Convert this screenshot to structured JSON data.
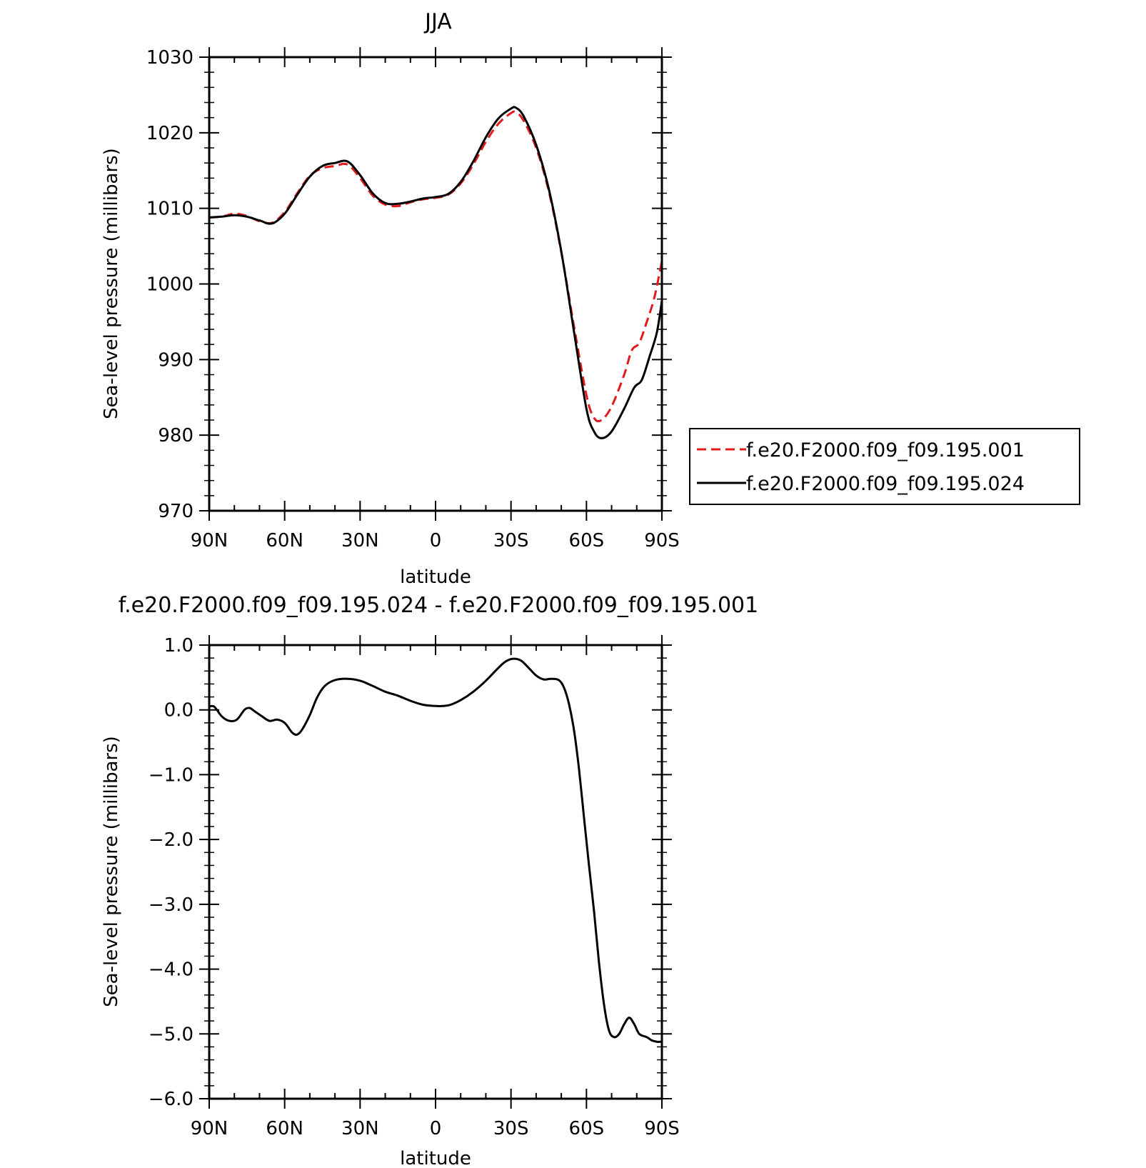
{
  "chart_data": [
    {
      "type": "line",
      "title": "JJA",
      "xlabel": "latitude",
      "ylabel": "Sea-level pressure (millibars)",
      "x_ticks": [
        {
          "label": "90N",
          "lat": 90
        },
        {
          "label": "60N",
          "lat": 60
        },
        {
          "label": "30N",
          "lat": 30
        },
        {
          "label": "0",
          "lat": 0
        },
        {
          "label": "30S",
          "lat": -30
        },
        {
          "label": "60S",
          "lat": -60
        },
        {
          "label": "90S",
          "lat": -90
        }
      ],
      "y_ticks": [
        {
          "label": "970",
          "value": 970
        },
        {
          "label": "980",
          "value": 980
        },
        {
          "label": "990",
          "value": 990
        },
        {
          "label": "1000",
          "value": 1000
        },
        {
          "label": "1010",
          "value": 1010
        },
        {
          "label": "1020",
          "value": 1020
        },
        {
          "label": "1030",
          "value": 1030
        }
      ],
      "xlim": [
        90,
        -90
      ],
      "ylim": [
        970,
        1030
      ],
      "grid": false,
      "legend_position": "right",
      "series": [
        {
          "name": "f.e20.F2000.f09_f09.195.001",
          "color": "#e31a1c",
          "dash": "dashed",
          "points": [
            [
              90,
              1008.8
            ],
            [
              85,
              1008.9
            ],
            [
              80,
              1009.3
            ],
            [
              75,
              1009.0
            ],
            [
              70,
              1008.3
            ],
            [
              65,
              1008.1
            ],
            [
              60,
              1009.5
            ],
            [
              55,
              1012.0
            ],
            [
              50,
              1014.3
            ],
            [
              45,
              1015.3
            ],
            [
              40,
              1015.6
            ],
            [
              35,
              1015.8
            ],
            [
              30,
              1014.0
            ],
            [
              25,
              1011.7
            ],
            [
              20,
              1010.5
            ],
            [
              15,
              1010.3
            ],
            [
              10,
              1010.8
            ],
            [
              5,
              1011.2
            ],
            [
              0,
              1011.4
            ],
            [
              -5,
              1011.8
            ],
            [
              -10,
              1013.3
            ],
            [
              -15,
              1015.8
            ],
            [
              -20,
              1018.8
            ],
            [
              -25,
              1021.2
            ],
            [
              -30,
              1022.6
            ],
            [
              -32,
              1022.7
            ],
            [
              -35,
              1021.6
            ],
            [
              -40,
              1018.0
            ],
            [
              -45,
              1012.3
            ],
            [
              -50,
              1004.2
            ],
            [
              -55,
              994.5
            ],
            [
              -60,
              985.3
            ],
            [
              -63,
              982.3
            ],
            [
              -66,
              982.0
            ],
            [
              -70,
              983.8
            ],
            [
              -75,
              988.0
            ],
            [
              -78,
              991.2
            ],
            [
              -81,
              992.2
            ],
            [
              -84,
              995.0
            ],
            [
              -87,
              998.2
            ],
            [
              -90,
              1003.0
            ]
          ]
        },
        {
          "name": "f.e20.F2000.f09_f09.195.024",
          "color": "#000000",
          "dash": "solid",
          "points": [
            [
              90,
              1008.8
            ],
            [
              85,
              1008.9
            ],
            [
              80,
              1009.1
            ],
            [
              75,
              1008.9
            ],
            [
              70,
              1008.4
            ],
            [
              65,
              1008.0
            ],
            [
              60,
              1009.3
            ],
            [
              55,
              1011.8
            ],
            [
              50,
              1014.2
            ],
            [
              45,
              1015.6
            ],
            [
              40,
              1016.0
            ],
            [
              35,
              1016.2
            ],
            [
              30,
              1014.4
            ],
            [
              25,
              1012.0
            ],
            [
              20,
              1010.7
            ],
            [
              15,
              1010.6
            ],
            [
              10,
              1010.9
            ],
            [
              5,
              1011.3
            ],
            [
              0,
              1011.5
            ],
            [
              -5,
              1011.9
            ],
            [
              -10,
              1013.5
            ],
            [
              -15,
              1016.2
            ],
            [
              -20,
              1019.4
            ],
            [
              -25,
              1021.9
            ],
            [
              -30,
              1023.2
            ],
            [
              -32,
              1023.3
            ],
            [
              -35,
              1022.2
            ],
            [
              -40,
              1018.4
            ],
            [
              -45,
              1012.6
            ],
            [
              -50,
              1004.3
            ],
            [
              -55,
              993.8
            ],
            [
              -60,
              983.5
            ],
            [
              -63,
              980.5
            ],
            [
              -66,
              979.6
            ],
            [
              -70,
              980.5
            ],
            [
              -75,
              983.5
            ],
            [
              -79,
              986.3
            ],
            [
              -82,
              987.3
            ],
            [
              -85,
              990.3
            ],
            [
              -88,
              993.6
            ],
            [
              -90,
              997.8
            ]
          ]
        }
      ]
    },
    {
      "type": "line",
      "title": "f.e20.F2000.f09_f09.195.024 - f.e20.F2000.f09_f09.195.001",
      "xlabel": "latitude",
      "ylabel": "Sea-level pressure (millibars)",
      "x_ticks": [
        {
          "label": "90N",
          "lat": 90
        },
        {
          "label": "60N",
          "lat": 60
        },
        {
          "label": "30N",
          "lat": 30
        },
        {
          "label": "0",
          "lat": 0
        },
        {
          "label": "30S",
          "lat": -30
        },
        {
          "label": "60S",
          "lat": -60
        },
        {
          "label": "90S",
          "lat": -90
        }
      ],
      "y_ticks": [
        {
          "label": "−6.0",
          "value": -6
        },
        {
          "label": "−5.0",
          "value": -5
        },
        {
          "label": "−4.0",
          "value": -4
        },
        {
          "label": "−3.0",
          "value": -3
        },
        {
          "label": "−2.0",
          "value": -2
        },
        {
          "label": "−1.0",
          "value": -1
        },
        {
          "label": "0.0",
          "value": 0
        },
        {
          "label": "1.0",
          "value": 1
        }
      ],
      "xlim": [
        90,
        -90
      ],
      "ylim": [
        -6,
        1
      ],
      "grid": false,
      "series": [
        {
          "color": "#000000",
          "dash": "solid",
          "points": [
            [
              90,
              0.05
            ],
            [
              88,
              0.05
            ],
            [
              85,
              -0.1
            ],
            [
              82,
              -0.17
            ],
            [
              79,
              -0.15
            ],
            [
              76,
              0.0
            ],
            [
              74,
              0.03
            ],
            [
              72,
              -0.02
            ],
            [
              69,
              -0.1
            ],
            [
              66,
              -0.17
            ],
            [
              63,
              -0.15
            ],
            [
              60,
              -0.2
            ],
            [
              57,
              -0.35
            ],
            [
              55,
              -0.38
            ],
            [
              53,
              -0.3
            ],
            [
              50,
              -0.08
            ],
            [
              47,
              0.2
            ],
            [
              44,
              0.37
            ],
            [
              40,
              0.46
            ],
            [
              35,
              0.48
            ],
            [
              30,
              0.45
            ],
            [
              25,
              0.37
            ],
            [
              20,
              0.28
            ],
            [
              15,
              0.22
            ],
            [
              10,
              0.14
            ],
            [
              5,
              0.08
            ],
            [
              0,
              0.06
            ],
            [
              -3,
              0.06
            ],
            [
              -6,
              0.08
            ],
            [
              -10,
              0.15
            ],
            [
              -15,
              0.28
            ],
            [
              -20,
              0.45
            ],
            [
              -25,
              0.65
            ],
            [
              -28,
              0.75
            ],
            [
              -31,
              0.79
            ],
            [
              -34,
              0.76
            ],
            [
              -37,
              0.65
            ],
            [
              -40,
              0.53
            ],
            [
              -43,
              0.47
            ],
            [
              -46,
              0.48
            ],
            [
              -49,
              0.46
            ],
            [
              -51,
              0.35
            ],
            [
              -53,
              0.1
            ],
            [
              -55,
              -0.3
            ],
            [
              -57,
              -0.9
            ],
            [
              -59,
              -1.65
            ],
            [
              -61,
              -2.4
            ],
            [
              -63,
              -3.1
            ],
            [
              -65,
              -3.9
            ],
            [
              -67,
              -4.55
            ],
            [
              -69,
              -4.95
            ],
            [
              -71,
              -5.05
            ],
            [
              -73,
              -5.0
            ],
            [
              -75,
              -4.85
            ],
            [
              -77,
              -4.75
            ],
            [
              -79,
              -4.85
            ],
            [
              -81,
              -5.0
            ],
            [
              -84,
              -5.05
            ],
            [
              -86,
              -5.1
            ],
            [
              -88,
              -5.12
            ],
            [
              -90,
              -5.12
            ]
          ]
        }
      ]
    }
  ]
}
